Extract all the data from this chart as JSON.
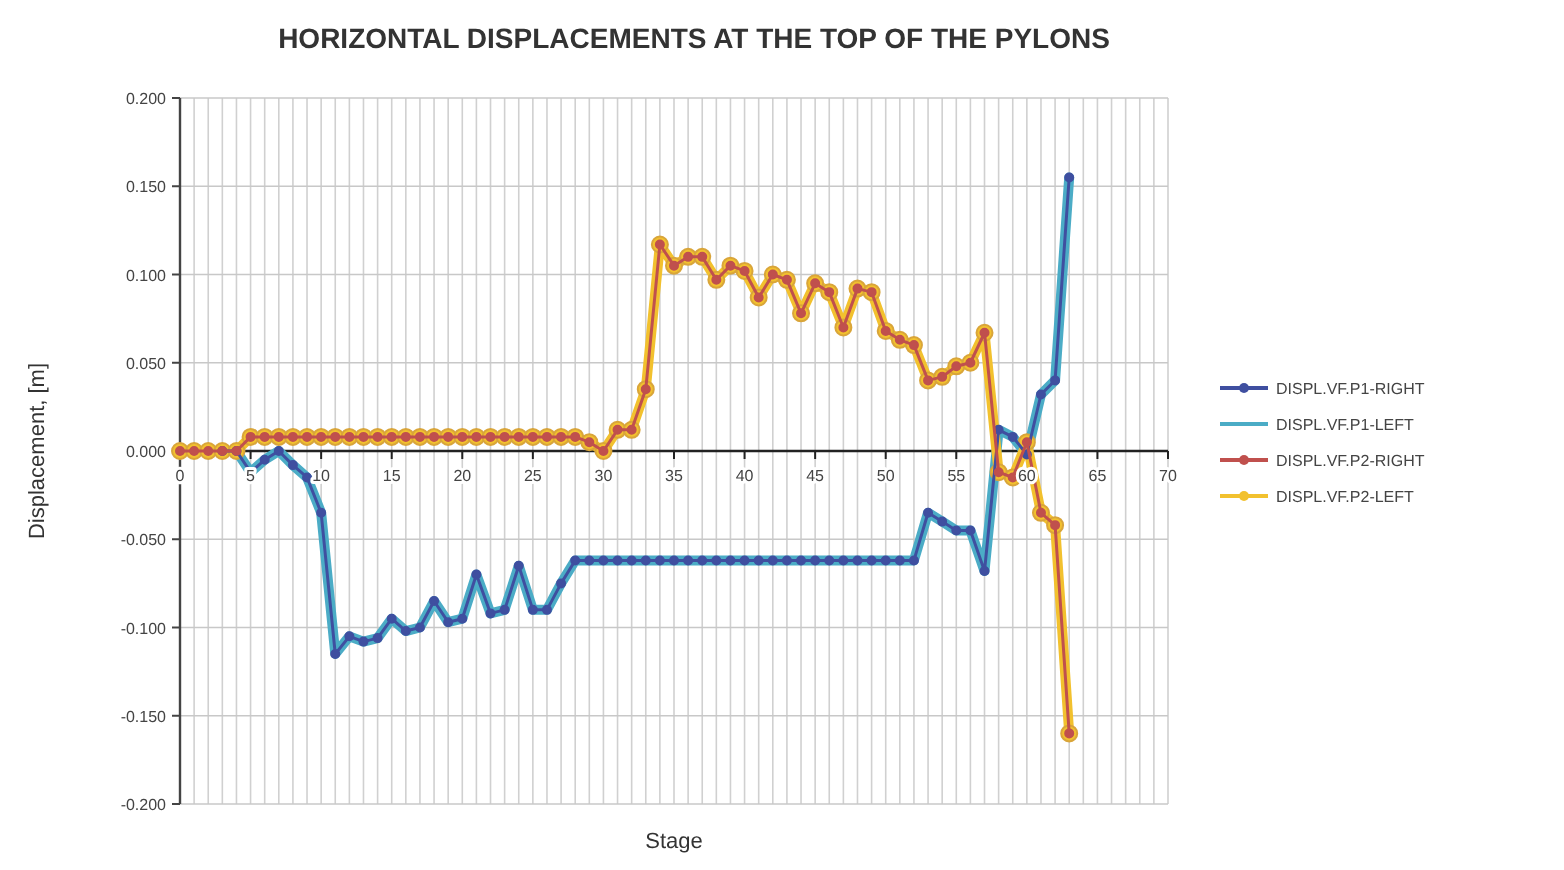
{
  "chart_data": {
    "type": "line",
    "title": "HORIZONTAL DISPLACEMENTS AT THE TOP OF THE PYLONS",
    "xlabel": "Stage",
    "ylabel": "Displacement, [m]",
    "x": [
      0,
      1,
      2,
      3,
      4,
      5,
      6,
      7,
      8,
      9,
      10,
      11,
      12,
      13,
      14,
      15,
      16,
      17,
      18,
      19,
      20,
      21,
      22,
      23,
      24,
      25,
      26,
      27,
      28,
      29,
      30,
      31,
      32,
      33,
      34,
      35,
      36,
      37,
      38,
      39,
      40,
      41,
      42,
      43,
      44,
      45,
      46,
      47,
      48,
      49,
      50,
      51,
      52,
      53,
      54,
      55,
      56,
      57,
      58,
      59,
      60,
      61,
      62,
      63
    ],
    "xlim": [
      0,
      70
    ],
    "xticks": [
      0,
      {
        "value": 1,
        "label": null
      },
      {
        "value": 2,
        "label": null
      },
      {
        "value": 3,
        "label": null
      },
      {
        "value": 4,
        "label": null
      },
      5,
      {
        "value": 6,
        "label": null
      },
      {
        "value": 7,
        "label": null
      },
      {
        "value": 8,
        "label": null
      },
      {
        "value": 9,
        "label": null
      },
      10,
      {
        "value": 11,
        "label": null
      },
      {
        "value": 12,
        "label": null
      },
      {
        "value": 13,
        "label": null
      },
      {
        "value": 14,
        "label": null
      },
      15,
      {
        "value": 16,
        "label": null
      },
      {
        "value": 17,
        "label": null
      },
      {
        "value": 18,
        "label": null
      },
      {
        "value": 19,
        "label": null
      },
      20,
      {
        "value": 21,
        "label": null
      },
      {
        "value": 22,
        "label": null
      },
      {
        "value": 23,
        "label": null
      },
      {
        "value": 24,
        "label": null
      },
      25,
      {
        "value": 26,
        "label": null
      },
      {
        "value": 27,
        "label": null
      },
      {
        "value": 28,
        "label": null
      },
      {
        "value": 29,
        "label": null
      },
      30,
      {
        "value": 31,
        "label": null
      },
      {
        "value": 32,
        "label": null
      },
      {
        "value": 33,
        "label": null
      },
      {
        "value": 34,
        "label": null
      },
      35,
      {
        "value": 36,
        "label": null
      },
      {
        "value": 37,
        "label": null
      },
      {
        "value": 38,
        "label": null
      },
      {
        "value": 39,
        "label": null
      },
      40,
      {
        "value": 41,
        "label": null
      },
      {
        "value": 42,
        "label": null
      },
      {
        "value": 43,
        "label": null
      },
      {
        "value": 44,
        "label": null
      },
      45,
      {
        "value": 46,
        "label": null
      },
      {
        "value": 47,
        "label": null
      },
      {
        "value": 48,
        "label": null
      },
      {
        "value": 49,
        "label": null
      },
      50,
      {
        "value": 51,
        "label": null
      },
      {
        "value": 52,
        "label": null
      },
      {
        "value": 53,
        "label": null
      },
      {
        "value": 54,
        "label": null
      },
      55,
      {
        "value": 56,
        "label": null
      },
      {
        "value": 57,
        "label": null
      },
      {
        "value": 58,
        "label": null
      },
      {
        "value": 59,
        "label": null
      },
      60,
      {
        "value": 61,
        "label": null
      },
      {
        "value": 62,
        "label": null
      },
      {
        "value": 63,
        "label": null
      },
      {
        "value": 64,
        "label": null
      },
      65,
      {
        "value": 66,
        "label": null
      },
      {
        "value": 67,
        "label": null
      },
      {
        "value": 68,
        "label": null
      },
      {
        "value": 69,
        "label": null
      },
      70
    ],
    "ylim": [
      -0.2,
      0.2
    ],
    "yticks": [
      {
        "value": 0.2,
        "label": "0.200"
      },
      {
        "value": 0.15,
        "label": "0.150"
      },
      {
        "value": 0.1,
        "label": "0.100"
      },
      {
        "value": 0.05,
        "label": "0.050"
      },
      {
        "value": 0,
        "label": "0.000"
      },
      {
        "value": -0.05,
        "label": "-0.050"
      },
      {
        "value": -0.1,
        "label": "-0.100"
      },
      {
        "value": -0.15,
        "label": "-0.150"
      },
      {
        "value": -0.2,
        "label": "-0.200"
      }
    ],
    "grid": true,
    "legend": "right",
    "series": [
      {
        "name": "DISPL.VF.P1-RIGHT",
        "color": "#3f4fa0",
        "marker": "circle",
        "values": [
          null,
          null,
          null,
          0,
          0,
          -0.012,
          -0.005,
          0,
          -0.008,
          -0.015,
          -0.035,
          -0.115,
          -0.105,
          -0.108,
          -0.106,
          -0.095,
          -0.102,
          -0.1,
          -0.085,
          -0.097,
          -0.095,
          -0.07,
          -0.092,
          -0.09,
          -0.065,
          -0.09,
          -0.09,
          -0.075,
          -0.062,
          -0.062,
          -0.062,
          -0.062,
          -0.062,
          -0.062,
          -0.062,
          -0.062,
          -0.062,
          -0.062,
          -0.062,
          -0.062,
          -0.062,
          -0.062,
          -0.062,
          -0.062,
          -0.062,
          -0.062,
          -0.062,
          -0.062,
          -0.062,
          -0.062,
          -0.062,
          -0.062,
          -0.062,
          -0.035,
          -0.04,
          -0.045,
          -0.045,
          -0.068,
          0.012,
          0.008,
          -0.002,
          0.032,
          0.04,
          0.155
        ]
      },
      {
        "name": "DISPL.VF.P1-LEFT",
        "color": "#4bacc6",
        "values": [
          null,
          null,
          null,
          0,
          0,
          -0.012,
          -0.005,
          0,
          -0.008,
          -0.015,
          -0.035,
          -0.115,
          -0.105,
          -0.108,
          -0.106,
          -0.095,
          -0.102,
          -0.1,
          -0.085,
          -0.097,
          -0.095,
          -0.07,
          -0.092,
          -0.09,
          -0.065,
          -0.09,
          -0.09,
          -0.075,
          -0.062,
          -0.062,
          -0.062,
          -0.062,
          -0.062,
          -0.062,
          -0.062,
          -0.062,
          -0.062,
          -0.062,
          -0.062,
          -0.062,
          -0.062,
          -0.062,
          -0.062,
          -0.062,
          -0.062,
          -0.062,
          -0.062,
          -0.062,
          -0.062,
          -0.062,
          -0.062,
          -0.062,
          -0.062,
          -0.035,
          -0.04,
          -0.045,
          -0.045,
          -0.068,
          0.012,
          0.008,
          -0.002,
          0.032,
          0.04,
          0.155
        ]
      },
      {
        "name": "DISPL.VF.P2-RIGHT",
        "color": "#c0504d",
        "marker": "circle",
        "values": [
          0,
          0,
          0,
          0,
          0,
          0.008,
          0.008,
          0.008,
          0.008,
          0.008,
          0.008,
          0.008,
          0.008,
          0.008,
          0.008,
          0.008,
          0.008,
          0.008,
          0.008,
          0.008,
          0.008,
          0.008,
          0.008,
          0.008,
          0.008,
          0.008,
          0.008,
          0.008,
          0.008,
          0.005,
          0,
          0.012,
          0.012,
          0.035,
          0.117,
          0.105,
          0.11,
          0.11,
          0.097,
          0.105,
          0.102,
          0.087,
          0.1,
          0.097,
          0.078,
          0.095,
          0.09,
          0.07,
          0.092,
          0.09,
          0.068,
          0.063,
          0.06,
          0.04,
          0.042,
          0.048,
          0.05,
          0.067,
          -0.012,
          -0.015,
          0.005,
          -0.035,
          -0.042,
          -0.16
        ]
      },
      {
        "name": "DISPL.VF.P2-LEFT",
        "color": "#f2c12e",
        "marker": "circle",
        "values": [
          0,
          0,
          0,
          0,
          0,
          0.008,
          0.008,
          0.008,
          0.008,
          0.008,
          0.008,
          0.008,
          0.008,
          0.008,
          0.008,
          0.008,
          0.008,
          0.008,
          0.008,
          0.008,
          0.008,
          0.008,
          0.008,
          0.008,
          0.008,
          0.008,
          0.008,
          0.008,
          0.008,
          0.005,
          0,
          0.012,
          0.012,
          0.035,
          0.117,
          0.105,
          0.11,
          0.11,
          0.097,
          0.105,
          0.102,
          0.087,
          0.1,
          0.097,
          0.078,
          0.095,
          0.09,
          0.07,
          0.092,
          0.09,
          0.068,
          0.063,
          0.06,
          0.04,
          0.042,
          0.048,
          0.05,
          0.067,
          -0.012,
          -0.015,
          0.005,
          -0.035,
          -0.042,
          -0.16
        ]
      }
    ]
  }
}
